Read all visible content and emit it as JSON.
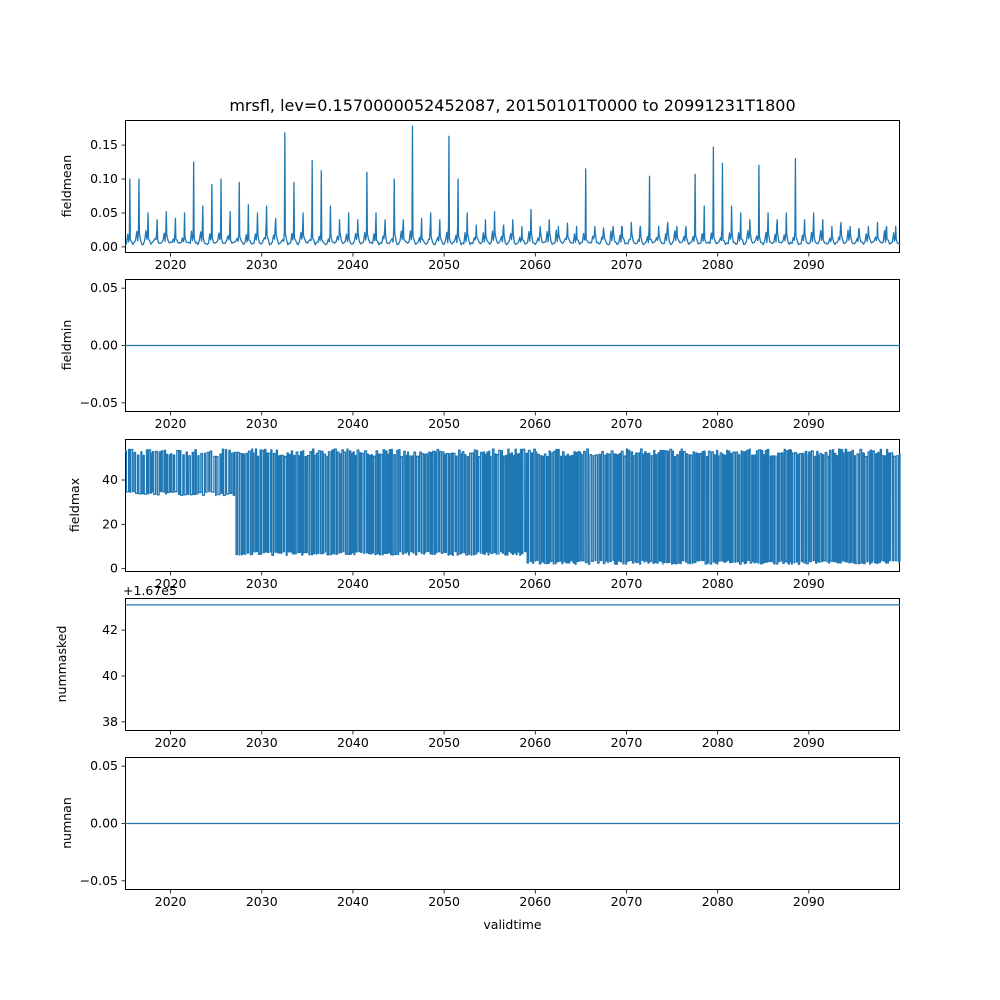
{
  "chart_data": {
    "type": "line",
    "title": "mrsfl, lev=0.1570000052452087, 20150101T0000 to 20991231T1800",
    "xlabel": "validtime",
    "x_range": [
      2015,
      2100
    ],
    "x_ticks": [
      2020,
      2030,
      2040,
      2050,
      2060,
      2070,
      2080,
      2090
    ],
    "x_tick_labels": [
      "2020",
      "2030",
      "2040",
      "2050",
      "2060",
      "2070",
      "2080",
      "2090"
    ],
    "line_color": "#1f77b4",
    "grid": false,
    "legend": "none",
    "subplots": [
      {
        "ylabel": "fieldmean",
        "ylim": [
          -0.009,
          0.187
        ],
        "yticks": [
          0.0,
          0.05,
          0.1,
          0.15
        ],
        "ytick_labels": [
          "0.00",
          "0.05",
          "0.10",
          "0.15"
        ],
        "series": {
          "kind": "annual_spikes",
          "start_year": 2015,
          "baseline": 0.004,
          "peak_by_year": [
            0.1,
            0.1,
            0.05,
            0.04,
            0.052,
            0.042,
            0.05,
            0.125,
            0.06,
            0.092,
            0.1,
            0.052,
            0.095,
            0.062,
            0.05,
            0.06,
            0.042,
            0.168,
            0.095,
            0.05,
            0.127,
            0.112,
            0.06,
            0.04,
            0.05,
            0.04,
            0.11,
            0.05,
            0.04,
            0.1,
            0.04,
            0.178,
            0.042,
            0.05,
            0.04,
            0.163,
            0.1,
            0.05,
            0.032,
            0.04,
            0.052,
            0.032,
            0.04,
            0.03,
            0.055,
            0.03,
            0.04,
            0.03,
            0.035,
            0.03,
            0.115,
            0.03,
            0.022,
            0.03,
            0.03,
            0.036,
            0.03,
            0.104,
            0.03,
            0.036,
            0.03,
            0.03,
            0.107,
            0.06,
            0.147,
            0.123,
            0.06,
            0.05,
            0.04,
            0.12,
            0.05,
            0.04,
            0.05,
            0.13,
            0.04,
            0.05,
            0.04,
            0.03,
            0.036,
            0.03,
            0.026,
            0.03,
            0.036,
            0.03,
            0.03
          ]
        }
      },
      {
        "ylabel": "fieldmin",
        "ylim": [
          -0.058,
          0.058
        ],
        "yticks": [
          -0.05,
          0.0,
          0.05
        ],
        "ytick_labels": [
          "−0.05",
          "0.00",
          "0.05"
        ],
        "series": {
          "kind": "constant",
          "value": 0.0
        }
      },
      {
        "ylabel": "fieldmax",
        "ylim": [
          -1.5,
          58.5
        ],
        "yticks": [
          0,
          20,
          40
        ],
        "ytick_labels": [
          "0",
          "20",
          "40"
        ],
        "series": {
          "kind": "square_oscillation",
          "max": 55,
          "segments": [
            {
              "from": 2015,
              "to": 2026,
              "min": 33
            },
            {
              "from": 2027,
              "to": 2058,
              "min": 6
            },
            {
              "from": 2059,
              "to": 2099,
              "min": 2
            }
          ]
        }
      },
      {
        "ylabel": "nummasked",
        "ylim": [
          37.6,
          43.4
        ],
        "yticks": [
          38,
          40,
          42
        ],
        "ytick_labels": [
          "38",
          "40",
          "42"
        ],
        "offset_text": "+1.67e5",
        "series": {
          "kind": "constant",
          "value": 43.1
        }
      },
      {
        "ylabel": "numnan",
        "ylim": [
          -0.058,
          0.058
        ],
        "yticks": [
          -0.05,
          0.0,
          0.05
        ],
        "ytick_labels": [
          "−0.05",
          "0.00",
          "0.05"
        ],
        "series": {
          "kind": "constant",
          "value": 0.0
        }
      }
    ]
  }
}
